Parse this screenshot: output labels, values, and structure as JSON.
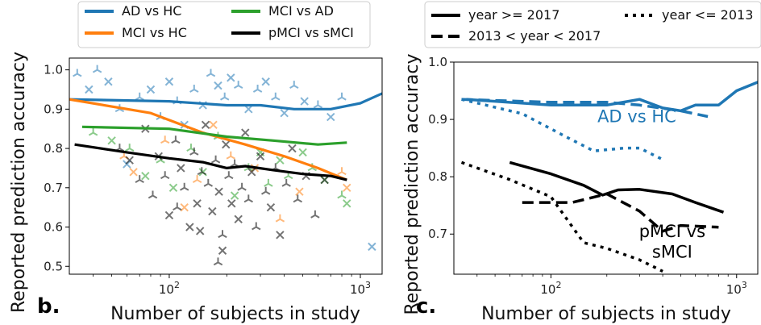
{
  "chart_data": [
    {
      "panel": "b.",
      "type": "scatter",
      "xlabel": "Number of subjects in study",
      "ylabel": "Reported prediction accuracy",
      "xscale": "log",
      "xlim": [
        30,
        1300
      ],
      "ylim": [
        0.48,
        1.03
      ],
      "xticks": [
        100,
        1000
      ],
      "xtick_labels": [
        "10",
        "10"
      ],
      "xtick_exponents": [
        "2",
        "3"
      ],
      "yticks": [
        0.5,
        0.6,
        0.7,
        0.8,
        0.9,
        1.0
      ],
      "ytick_labels": [
        "0.5",
        "0.6",
        "0.7",
        "0.8",
        "0.9",
        "1.0"
      ],
      "legend": "top, outside, 2 columns",
      "series": [
        {
          "name": "AD vs HC",
          "color": "#1f77b4",
          "trend": [
            [
              30,
              0.925
            ],
            [
              100,
              0.92
            ],
            [
              200,
              0.91
            ],
            [
              300,
              0.91
            ],
            [
              450,
              0.9
            ],
            [
              700,
              0.9
            ],
            [
              1000,
              0.915
            ],
            [
              1300,
              0.94
            ]
          ],
          "points": [
            [
              33,
              0.99
            ],
            [
              38,
              0.95
            ],
            [
              42,
              1.0
            ],
            [
              48,
              0.97
            ],
            [
              55,
              0.9
            ],
            [
              60,
              0.76
            ],
            [
              70,
              0.93
            ],
            [
              80,
              0.95
            ],
            [
              90,
              0.88
            ],
            [
              100,
              0.97
            ],
            [
              110,
              0.92
            ],
            [
              120,
              0.86
            ],
            [
              135,
              0.95
            ],
            [
              150,
              0.91
            ],
            [
              165,
              0.99
            ],
            [
              180,
              0.96
            ],
            [
              195,
              0.93
            ],
            [
              210,
              0.98
            ],
            [
              230,
              0.96
            ],
            [
              260,
              0.9
            ],
            [
              290,
              0.95
            ],
            [
              320,
              0.97
            ],
            [
              360,
              0.93
            ],
            [
              400,
              0.89
            ],
            [
              450,
              0.96
            ],
            [
              510,
              0.92
            ],
            [
              600,
              0.91
            ],
            [
              700,
              0.88
            ],
            [
              800,
              0.93
            ],
            [
              1150,
              0.55
            ]
          ]
        },
        {
          "name": "MCI vs HC",
          "color": "#ff7f0e",
          "trend": [
            [
              30,
              0.925
            ],
            [
              80,
              0.89
            ],
            [
              150,
              0.84
            ],
            [
              250,
              0.81
            ],
            [
              400,
              0.78
            ],
            [
              600,
              0.75
            ],
            [
              850,
              0.72
            ]
          ],
          "points": [
            [
              58,
              0.78
            ],
            [
              65,
              0.74
            ],
            [
              95,
              0.82
            ],
            [
              120,
              0.65
            ],
            [
              140,
              0.72
            ],
            [
              170,
              0.86
            ],
            [
              210,
              0.78
            ],
            [
              280,
              0.75
            ],
            [
              380,
              0.62
            ],
            [
              480,
              0.69
            ],
            [
              800,
              0.74
            ],
            [
              850,
              0.7
            ]
          ]
        },
        {
          "name": "MCI vs AD",
          "color": "#2ca02c",
          "trend": [
            [
              35,
              0.855
            ],
            [
              100,
              0.85
            ],
            [
              200,
              0.83
            ],
            [
              350,
              0.82
            ],
            [
              600,
              0.81
            ],
            [
              850,
              0.815
            ]
          ],
          "points": [
            [
              40,
              0.84
            ],
            [
              50,
              0.82
            ],
            [
              62,
              0.8
            ],
            [
              75,
              0.73
            ],
            [
              90,
              0.77
            ],
            [
              105,
              0.7
            ],
            [
              130,
              0.8
            ],
            [
              150,
              0.74
            ],
            [
              180,
              0.83
            ],
            [
              220,
              0.68
            ],
            [
              260,
              0.75
            ],
            [
              300,
              0.79
            ],
            [
              330,
              0.71
            ],
            [
              380,
              0.77
            ],
            [
              420,
              0.73
            ],
            [
              500,
              0.79
            ],
            [
              560,
              0.75
            ],
            [
              650,
              0.72
            ],
            [
              800,
              0.68
            ],
            [
              850,
              0.66
            ]
          ]
        },
        {
          "name": "pMCI vs sMCI",
          "color": "#000000",
          "trend": [
            [
              32,
              0.81
            ],
            [
              60,
              0.79
            ],
            [
              100,
              0.775
            ],
            [
              150,
              0.765
            ],
            [
              200,
              0.75
            ],
            [
              250,
              0.755
            ],
            [
              350,
              0.745
            ],
            [
              500,
              0.735
            ],
            [
              700,
              0.73
            ],
            [
              850,
              0.72
            ]
          ],
          "points": [
            [
              55,
              0.8
            ],
            [
              62,
              0.77
            ],
            [
              70,
              0.72
            ],
            [
              75,
              0.85
            ],
            [
              82,
              0.68
            ],
            [
              88,
              0.78
            ],
            [
              95,
              0.73
            ],
            [
              100,
              0.63
            ],
            [
              108,
              0.82
            ],
            [
              115,
              0.75
            ],
            [
              120,
              0.7
            ],
            [
              128,
              0.6
            ],
            [
              135,
              0.79
            ],
            [
              140,
              0.66
            ],
            [
              148,
              0.74
            ],
            [
              155,
              0.86
            ],
            [
              160,
              0.71
            ],
            [
              168,
              0.64
            ],
            [
              175,
              0.77
            ],
            [
              182,
              0.69
            ],
            [
              190,
              0.58
            ],
            [
              198,
              0.81
            ],
            [
              205,
              0.73
            ],
            [
              212,
              0.66
            ],
            [
              220,
              0.76
            ],
            [
              230,
              0.62
            ],
            [
              240,
              0.7
            ],
            [
              250,
              0.84
            ],
            [
              260,
              0.67
            ],
            [
              270,
              0.74
            ],
            [
              285,
              0.6
            ],
            [
              300,
              0.78
            ],
            [
              320,
              0.69
            ],
            [
              340,
              0.65
            ],
            [
              360,
              0.75
            ],
            [
              380,
              0.58
            ],
            [
              410,
              0.71
            ],
            [
              440,
              0.8
            ],
            [
              470,
              0.67
            ],
            [
              520,
              0.73
            ],
            [
              580,
              0.63
            ],
            [
              650,
              0.72
            ],
            [
              180,
              0.51
            ],
            [
              190,
              0.54
            ],
            [
              110,
              0.65
            ],
            [
              145,
              0.59
            ]
          ]
        }
      ]
    },
    {
      "panel": "c.",
      "type": "line",
      "xlabel": "Number of subjects in study",
      "ylabel": "Reported prediction accuracy",
      "xscale": "log",
      "xlim": [
        30,
        1300
      ],
      "ylim": [
        0.63,
        1.0
      ],
      "xticks": [
        100,
        1000
      ],
      "xtick_labels": [
        "10",
        "10"
      ],
      "xtick_exponents": [
        "2",
        "3"
      ],
      "yticks": [
        0.7,
        0.8,
        0.9,
        1.0
      ],
      "ytick_labels": [
        "0.7",
        "0.8",
        "0.9",
        "1.0"
      ],
      "legend": "top, outside, 2 columns",
      "legend_entries": [
        {
          "label": "year >= 2017",
          "style": "solid"
        },
        {
          "label": "year <= 2013",
          "style": "dotted"
        },
        {
          "label": "2013 < year < 2017",
          "style": "dashed"
        }
      ],
      "annotations": [
        {
          "text": "AD vs HC",
          "color": "#1f77b4",
          "x": 290,
          "y": 0.895
        },
        {
          "text": "pMCI vs",
          "color": "#000000",
          "x": 450,
          "y": 0.695
        },
        {
          "text": "sMCI",
          "color": "#000000",
          "x": 450,
          "y": 0.659
        }
      ],
      "series": [
        {
          "group": "AD vs HC",
          "period": "year >= 2017",
          "style": "solid",
          "color": "#1f77b4",
          "points": [
            [
              35,
              0.935
            ],
            [
              100,
              0.925
            ],
            [
              200,
              0.925
            ],
            [
              300,
              0.935
            ],
            [
              400,
              0.92
            ],
            [
              500,
              0.915
            ],
            [
              600,
              0.925
            ],
            [
              800,
              0.925
            ],
            [
              1000,
              0.95
            ],
            [
              1300,
              0.965
            ]
          ]
        },
        {
          "group": "AD vs HC",
          "period": "2013 < year < 2017",
          "style": "dashed",
          "color": "#1f77b4",
          "points": [
            [
              33,
              0.935
            ],
            [
              100,
              0.93
            ],
            [
              200,
              0.93
            ],
            [
              300,
              0.925
            ],
            [
              500,
              0.915
            ],
            [
              700,
              0.905
            ]
          ]
        },
        {
          "group": "AD vs HC",
          "period": "year <= 2013",
          "style": "dotted",
          "color": "#1f77b4",
          "points": [
            [
              33,
              0.935
            ],
            [
              70,
              0.91
            ],
            [
              120,
              0.87
            ],
            [
              170,
              0.845
            ],
            [
              250,
              0.85
            ],
            [
              300,
              0.85
            ],
            [
              400,
              0.83
            ]
          ]
        },
        {
          "group": "pMCI vs sMCI",
          "period": "year >= 2017",
          "style": "solid",
          "color": "#000000",
          "points": [
            [
              60,
              0.825
            ],
            [
              100,
              0.805
            ],
            [
              150,
              0.785
            ],
            [
              190,
              0.768
            ],
            [
              230,
              0.777
            ],
            [
              300,
              0.778
            ],
            [
              450,
              0.77
            ],
            [
              600,
              0.755
            ],
            [
              850,
              0.738
            ]
          ]
        },
        {
          "group": "pMCI vs sMCI",
          "period": "2013 < year < 2017",
          "style": "dashed",
          "color": "#000000",
          "points": [
            [
              70,
              0.755
            ],
            [
              130,
              0.755
            ],
            [
              200,
              0.77
            ],
            [
              300,
              0.74
            ],
            [
              400,
              0.705
            ],
            [
              500,
              0.715
            ],
            [
              800,
              0.712
            ]
          ]
        },
        {
          "group": "pMCI vs sMCI",
          "period": "year <= 2013",
          "style": "dotted",
          "color": "#000000",
          "points": [
            [
              33,
              0.825
            ],
            [
              60,
              0.795
            ],
            [
              100,
              0.765
            ],
            [
              150,
              0.685
            ],
            [
              200,
              0.675
            ],
            [
              300,
              0.655
            ],
            [
              400,
              0.635
            ]
          ]
        }
      ]
    }
  ]
}
